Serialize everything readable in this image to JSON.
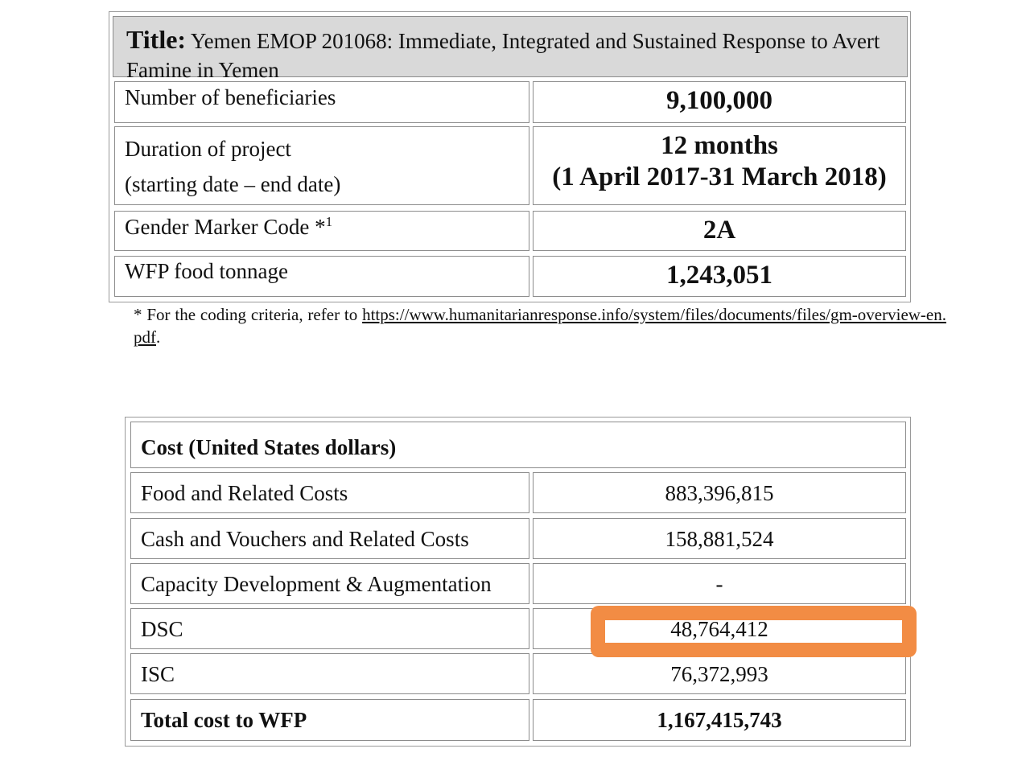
{
  "project_table": {
    "title_prefix": "Title:",
    "title_text": "Yemen EMOP 201068: Immediate, Integrated and Sustained Response to Avert Famine in Yemen",
    "rows": [
      {
        "label": "Number of beneficiaries",
        "value": "9,100,000"
      },
      {
        "label_line1": "Duration of project",
        "label_line2": "(starting date – end date)",
        "value_line1": "12 months",
        "value_line2": "(1 April 2017-31 March 2018)"
      },
      {
        "label": "Gender Marker Code *",
        "label_sup": "1",
        "value": "2A"
      },
      {
        "label": "WFP food tonnage",
        "value": "1,243,051"
      }
    ]
  },
  "footnote": {
    "prefix": "* For the coding criteria, refer to ",
    "link": "https://www.humanitarianresponse.info/system/files/documents/files/gm-overview-en.pdf",
    "suffix": "."
  },
  "cost_table": {
    "header": "Cost (United States dollars)",
    "rows": [
      {
        "label": "Food and Related Costs",
        "value": "883,396,815"
      },
      {
        "label": "Cash and Vouchers and Related Costs",
        "value": "158,881,524"
      },
      {
        "label": "Capacity Development & Augmentation",
        "value": "-"
      },
      {
        "label": "DSC",
        "value": "48,764,412"
      },
      {
        "label": "ISC",
        "value": "76,372,993"
      },
      {
        "label": "Total cost to WFP",
        "value": "1,167,415,743"
      }
    ]
  },
  "colors": {
    "highlight": "#f28c44",
    "title_background": "#d9d9d9"
  }
}
